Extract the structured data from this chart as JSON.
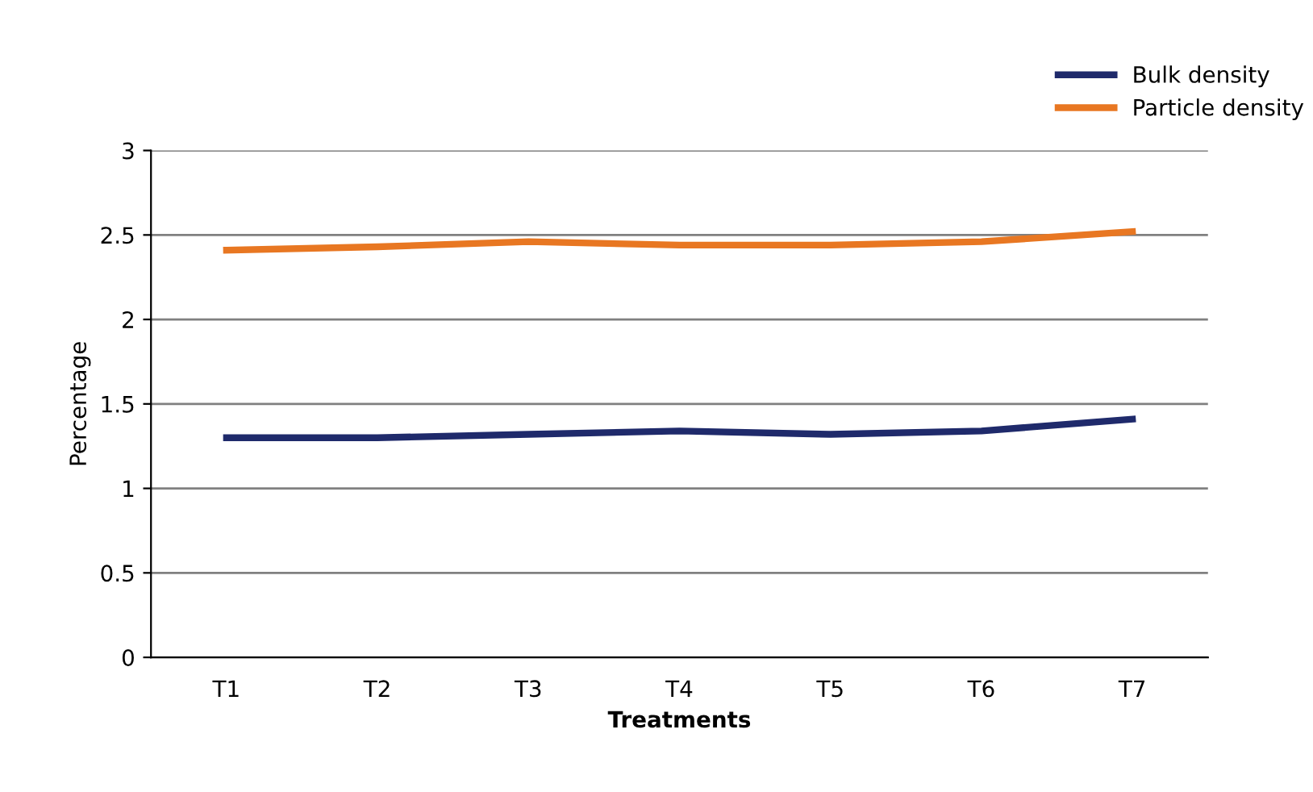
{
  "chart_data": {
    "type": "line",
    "xlabel": "Treatments",
    "ylabel": "Percentage",
    "categories": [
      "T1",
      "T2",
      "T3",
      "T4",
      "T5",
      "T6",
      "T7"
    ],
    "series": [
      {
        "name": "Bulk density",
        "color": "#1f2a6b",
        "values": [
          1.3,
          1.3,
          1.32,
          1.34,
          1.32,
          1.34,
          1.41
        ]
      },
      {
        "name": "Particle density",
        "color": "#e87722",
        "values": [
          2.41,
          2.43,
          2.46,
          2.44,
          2.44,
          2.46,
          2.52
        ]
      }
    ],
    "ylim": [
      0,
      3
    ],
    "yticks": [
      0,
      0.5,
      1,
      1.5,
      2,
      2.5,
      3
    ],
    "grid": "y",
    "legend": "top right",
    "marker": "none",
    "line_style": "solid"
  }
}
